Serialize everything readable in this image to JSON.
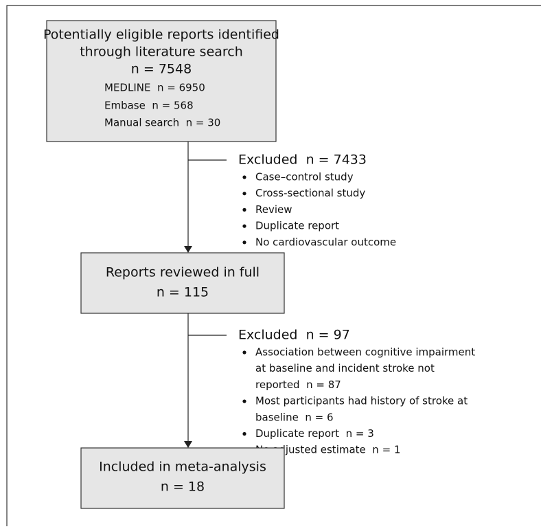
{
  "boxes": [
    {
      "lines": [
        "Potentially eligible reports identified",
        "through literature search",
        "n = 7548"
      ],
      "sources": [
        "MEDLINE  n = 6950",
        "Embase  n = 568",
        "Manual search  n = 30"
      ]
    },
    {
      "lines": [
        "Reports reviewed in full",
        "n = 115"
      ]
    },
    {
      "lines": [
        "Included in meta-analysis",
        "n = 18"
      ]
    }
  ],
  "exclusions": [
    {
      "title": "Excluded  n = 7433",
      "items": [
        [
          "Case–control study"
        ],
        [
          "Cross-sectional study"
        ],
        [
          "Review"
        ],
        [
          "Duplicate report"
        ],
        [
          "No cardiovascular outcome"
        ]
      ]
    },
    {
      "title": "Excluded  n = 97",
      "items": [
        [
          "Association between cognitive impairment",
          "at baseline and incident stroke not",
          "reported  n = 87"
        ],
        [
          "Most participants had history of stroke at",
          "baseline  n = 6"
        ],
        [
          "Duplicate report  n = 3"
        ],
        [
          "No adjusted estimate  n = 1"
        ]
      ]
    }
  ]
}
